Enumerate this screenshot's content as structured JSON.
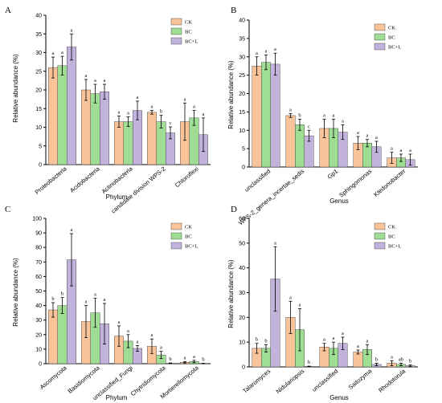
{
  "legend": [
    "CK",
    "BC",
    "BC+L"
  ],
  "colors": [
    "#f9c49a",
    "#9fdc94",
    "#c2b3dd"
  ],
  "chart_data": [
    {
      "panel": "A",
      "type": "bar",
      "xlabel": "Phylum",
      "ylabel": "Relative abundance (%)",
      "ylim": [
        0,
        40
      ],
      "yticks": [
        0,
        5,
        10,
        15,
        20,
        25,
        30,
        35,
        40
      ],
      "categories": [
        "Proteobacteria",
        "Acidobacteria",
        "Actinobacteria",
        "candidate division WPS-2",
        "Chloroflexi"
      ],
      "series": [
        {
          "name": "CK",
          "values": [
            26.0,
            20.0,
            11.5,
            14.0,
            11.5
          ],
          "errors": [
            2.8,
            2.8,
            1.5,
            0.5,
            5.0
          ],
          "sig": [
            "a",
            "a",
            "a",
            "a",
            "a"
          ]
        },
        {
          "name": "BC",
          "values": [
            26.5,
            19.0,
            11.5,
            11.5,
            12.5
          ],
          "errors": [
            2.5,
            2.5,
            1.3,
            1.7,
            2.0
          ],
          "sig": [
            "a",
            "a",
            "a",
            "b",
            "a"
          ]
        },
        {
          "name": "BC+L",
          "values": [
            31.5,
            19.5,
            14.5,
            8.5,
            8.0
          ],
          "errors": [
            3.5,
            2.0,
            2.5,
            1.6,
            4.5
          ],
          "sig": [
            "a",
            "a",
            "a",
            "c",
            "a"
          ]
        }
      ]
    },
    {
      "panel": "B",
      "type": "bar",
      "xlabel": "Genus",
      "ylabel": "Relative abundance (%)",
      "ylim": [
        0,
        40
      ],
      "yticks": [
        0,
        5,
        10,
        15,
        20,
        25,
        30,
        35,
        40
      ],
      "categories": [
        "unclassified",
        "WPS-2_genera_incertae_sedis",
        "Gp1",
        "Sphingomonas",
        "Ktedonobacter"
      ],
      "series": [
        {
          "name": "CK",
          "values": [
            27.5,
            14.0,
            10.5,
            6.5,
            2.5
          ],
          "errors": [
            2.5,
            0.5,
            2.5,
            1.8,
            1.5
          ],
          "sig": [
            "a",
            "a",
            "a",
            "a",
            "a"
          ]
        },
        {
          "name": "BC",
          "values": [
            28.5,
            11.5,
            10.5,
            6.5,
            2.5
          ],
          "errors": [
            2.0,
            1.5,
            2.5,
            1.0,
            1.0
          ],
          "sig": [
            "a",
            "b",
            "a",
            "a",
            "a"
          ]
        },
        {
          "name": "BC+L",
          "values": [
            28.0,
            8.5,
            9.5,
            5.5,
            2.0
          ],
          "errors": [
            3.0,
            1.5,
            2.0,
            1.5,
            1.5
          ],
          "sig": [
            "a",
            "c",
            "a",
            "a",
            "a"
          ]
        }
      ]
    },
    {
      "panel": "C",
      "type": "bar",
      "xlabel": "Phylum",
      "ylabel": "Relative abundance (%)",
      "ylim": [
        0,
        100
      ],
      "yticks": [
        0,
        10,
        20,
        30,
        40,
        50,
        60,
        70,
        80,
        90,
        100
      ],
      "categories": [
        "Ascomycota",
        "Basidiomycota",
        "unclassified_Fungi",
        "Chytridiomycota",
        "Mortierellomycota"
      ],
      "series": [
        {
          "name": "CK",
          "values": [
            37.0,
            29.0,
            19.0,
            12.0,
            1.0
          ],
          "errors": [
            5.0,
            11.0,
            7.0,
            5.0,
            0.5
          ],
          "sig": [
            "b",
            "a",
            "a",
            "a",
            "a"
          ]
        },
        {
          "name": "BC",
          "values": [
            40.0,
            35.0,
            15.5,
            6.0,
            1.5
          ],
          "errors": [
            5.5,
            10.0,
            4.5,
            2.5,
            0.8
          ],
          "sig": [
            "b",
            "a",
            "a",
            "a",
            "a"
          ]
        },
        {
          "name": "BC+L",
          "values": [
            71.5,
            27.5,
            10.5,
            0.3,
            0.2
          ],
          "errors": [
            18.0,
            14.0,
            2.0,
            0.2,
            0.1
          ],
          "sig": [
            "a",
            "a",
            "a",
            "b",
            "b"
          ]
        }
      ]
    },
    {
      "panel": "D",
      "type": "bar",
      "xlabel": "Genus",
      "ylabel": "Relative abundance (%)",
      "ylim": [
        0,
        60
      ],
      "yticks": [
        0,
        10,
        20,
        30,
        40,
        50,
        60
      ],
      "categories": [
        "Talaromyces",
        "Nidulariopsis",
        "unclassified",
        "Saitozyma",
        "Rhodotorula"
      ],
      "series": [
        {
          "name": "CK",
          "values": [
            7.5,
            20.0,
            8.0,
            6.0,
            1.5
          ],
          "errors": [
            2.0,
            6.5,
            1.5,
            0.8,
            1.0
          ],
          "sig": [
            "b",
            "a",
            "a",
            "a",
            "a"
          ]
        },
        {
          "name": "BC",
          "values": [
            7.5,
            15.0,
            7.5,
            7.0,
            1.0
          ],
          "errors": [
            1.5,
            8.5,
            2.5,
            2.0,
            0.5
          ],
          "sig": [
            "b",
            "a",
            "a",
            "a",
            "ab"
          ]
        },
        {
          "name": "BC+L",
          "values": [
            35.5,
            0.2,
            9.5,
            1.0,
            0.5
          ],
          "errors": [
            13.0,
            0.1,
            2.5,
            0.5,
            0.3
          ],
          "sig": [
            "a",
            "b",
            "a",
            "b",
            "b"
          ]
        }
      ]
    }
  ]
}
